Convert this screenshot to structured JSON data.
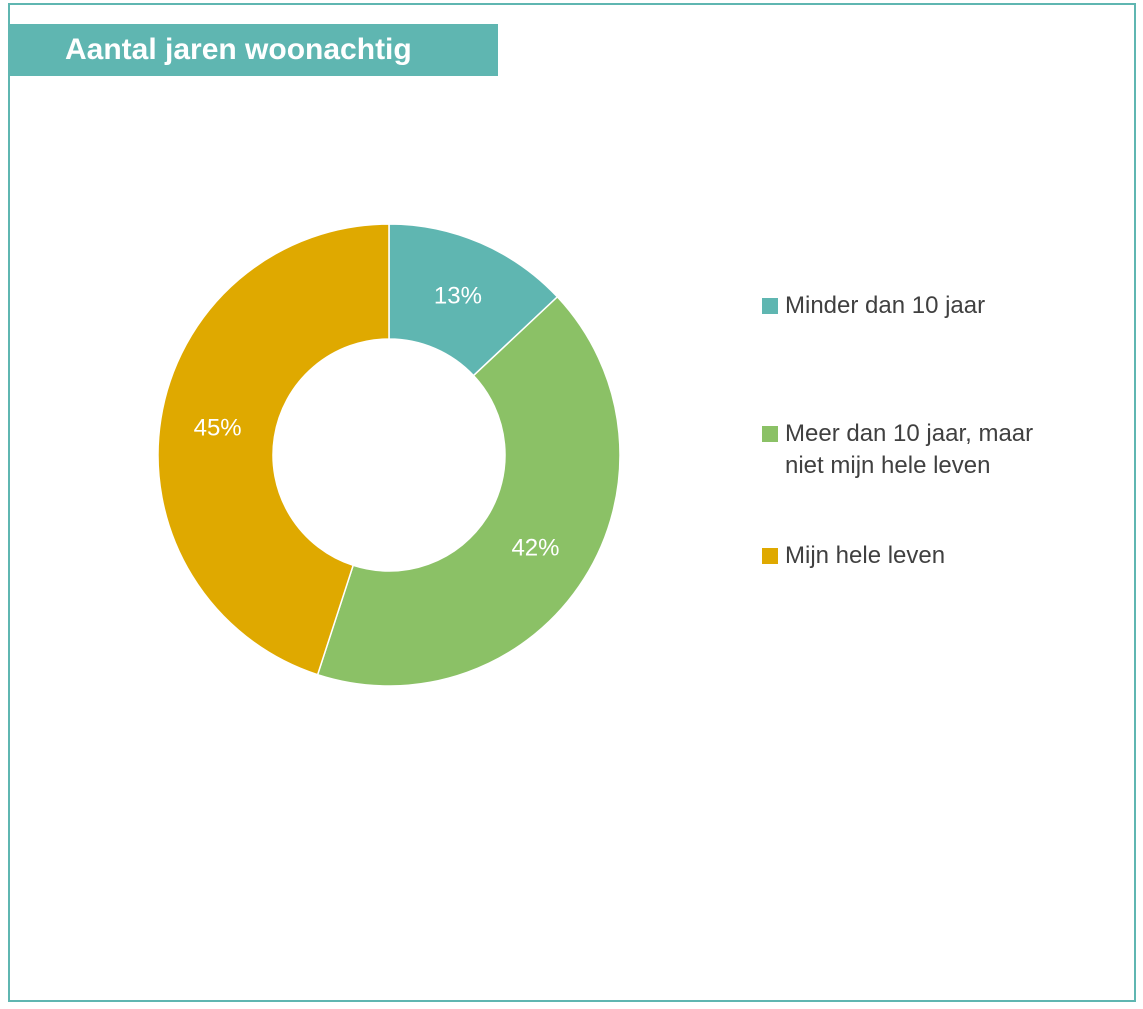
{
  "title": "Aantal jaren woonachtig",
  "colors": {
    "frame": "#5fb6b1",
    "title_bg": "#5fb6b1"
  },
  "chart_data": {
    "type": "pie",
    "variant": "donut",
    "title": "Aantal jaren woonachtig",
    "legend_position": "right",
    "slices": [
      {
        "name": "Minder dan 10 jaar",
        "value": 13,
        "label": "13%",
        "color": "#5fb6b1"
      },
      {
        "name": "Meer dan 10 jaar, maar niet mijn hele leven",
        "value": 42,
        "label": "42%",
        "color": "#8bc166"
      },
      {
        "name": "Mijn hele leven",
        "value": 45,
        "label": "45%",
        "color": "#dfa900"
      }
    ],
    "legend": [
      {
        "text": "Minder dan 10 jaar",
        "color": "#5fb6b1"
      },
      {
        "text": "Meer dan 10 jaar, maar\nniet mijn hele leven",
        "color": "#8bc166"
      },
      {
        "text": "Mijn hele leven",
        "color": "#dfa900"
      }
    ]
  }
}
